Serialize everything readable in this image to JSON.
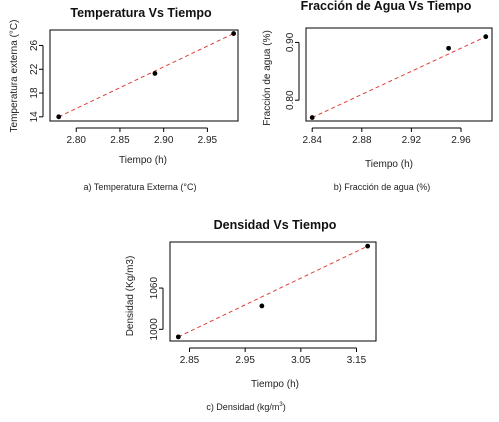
{
  "chart_data": [
    {
      "id": "a",
      "type": "scatter",
      "title": "Temperatura Vs Tiempo",
      "xlabel": "Tiempo (h)",
      "ylabel": "Temperatura externa (°C)",
      "caption": "a) Temperatura Externa (°C)",
      "xlim": [
        2.77,
        2.985
      ],
      "ylim": [
        13.3,
        28.6
      ],
      "xticks": [
        "2.80",
        "2.85",
        "2.90",
        "2.95"
      ],
      "yticks": [
        "14",
        "18",
        "22",
        "26"
      ],
      "trendline": "dashed",
      "trend_color": "#e0403a",
      "x": [
        2.78,
        2.89,
        2.98
      ],
      "y": [
        14.0,
        21.3,
        28.0
      ]
    },
    {
      "id": "b",
      "type": "scatter",
      "title": "Fracción de Agua Vs Tiempo",
      "xlabel": "Tiempo (h)",
      "ylabel": "Fracción de agua (%)",
      "caption": "b) Fracción de agua (%)",
      "xlim": [
        2.835,
        2.985
      ],
      "ylim": [
        0.764,
        0.925
      ],
      "xticks": [
        "2.84",
        "2.88",
        "2.92",
        "2.96"
      ],
      "yticks": [
        "0.80",
        "0.90"
      ],
      "trendline": "dashed",
      "trend_color": "#e0403a",
      "x": [
        2.84,
        2.95,
        2.98
      ],
      "y": [
        0.77,
        0.89,
        0.91
      ]
    },
    {
      "id": "c",
      "type": "scatter",
      "title": "Densidad Vs Tiempo",
      "xlabel": "Tiempo (h)",
      "ylabel": "Densidad (Kg/m3)",
      "caption": "c) Densidad (kg/m",
      "caption_sup": "3",
      "caption_end": ")",
      "xlim": [
        2.815,
        3.185
      ],
      "ylim": [
        983,
        1127
      ],
      "xticks": [
        "2.85",
        "2.95",
        "3.05",
        "3.15"
      ],
      "yticks": [
        "1000",
        "1060"
      ],
      "trendline": "dashed",
      "trend_color": "#e0403a",
      "x": [
        2.83,
        2.98,
        3.17
      ],
      "y": [
        989,
        1034,
        1121
      ]
    }
  ]
}
